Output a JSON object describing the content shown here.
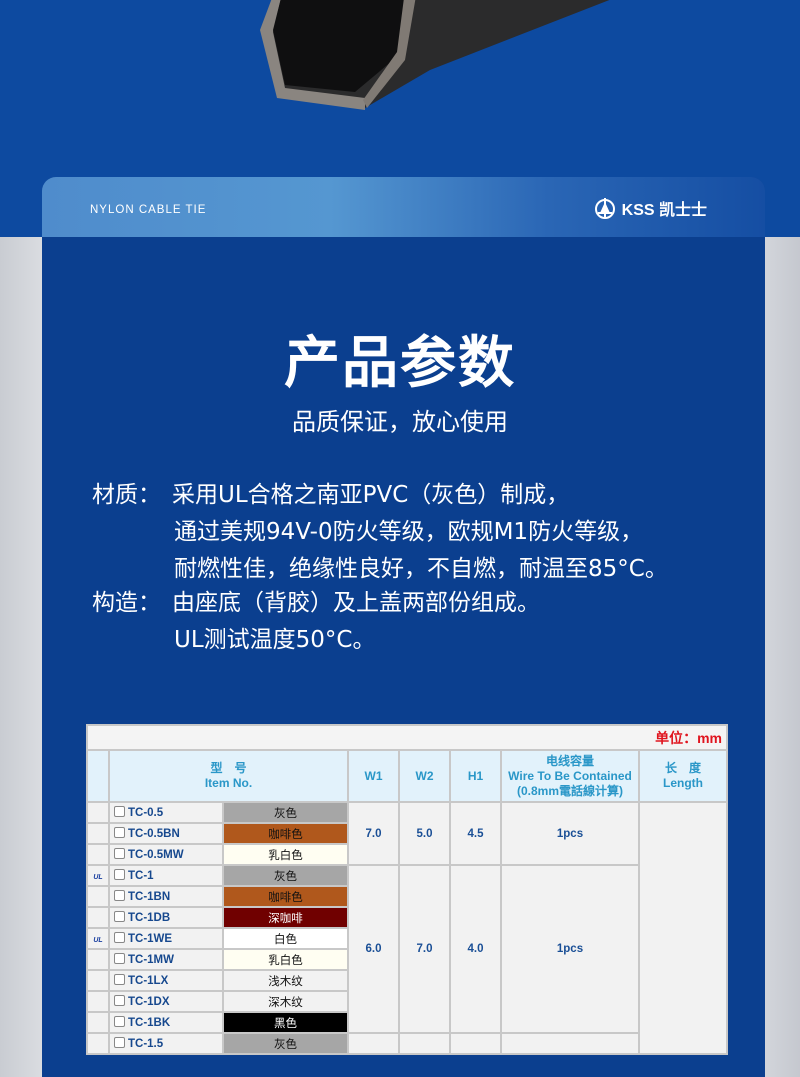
{
  "header": {
    "tagline": "NYLON CABLE TIE",
    "brand": "KSS 凯士士"
  },
  "title": "产品参数",
  "subtitle": "品质保证，放心使用",
  "specs": [
    {
      "label": "材质：",
      "lines": [
        "采用UL合格之南亚PVC（灰色）制成，",
        "通过美规94V-0防火等级，欧规M1防火等级，",
        "耐燃性佳，绝缘性良好，不自燃，耐温至85°C。"
      ]
    },
    {
      "label": "构造：",
      "lines": [
        "由座底（背胶）及上盖两部份组成。",
        "UL测试温度50°C。"
      ]
    }
  ],
  "table": {
    "unit": "单位：mm",
    "headers": {
      "item_cn": "型　号",
      "item_en": "Item No.",
      "w1": "W1",
      "w2": "W2",
      "h1": "H1",
      "wire_cn": "电线容量",
      "wire_en": "Wire To Be Contained",
      "wire_note": "(0.8mm電話線计算)",
      "len_cn": "长　度",
      "len_en": "Length"
    },
    "groups": [
      {
        "w1": "7.0",
        "w2": "5.0",
        "h1": "4.5",
        "wire": "1pcs",
        "rows": [
          {
            "ul": false,
            "item": "TC-0.5",
            "color": "灰色",
            "bg": "#a6a6a6",
            "fg": "#111111"
          },
          {
            "ul": false,
            "item": "TC-0.5BN",
            "color": "咖啡色",
            "bg": "#b0581c",
            "fg": "#111111"
          },
          {
            "ul": false,
            "item": "TC-0.5MW",
            "color": "乳白色",
            "bg": "#fffef2",
            "fg": "#111111"
          }
        ]
      },
      {
        "w1": "6.0",
        "w2": "7.0",
        "h1": "4.0",
        "wire": "1pcs",
        "rows": [
          {
            "ul": true,
            "item": "TC-1",
            "color": "灰色",
            "bg": "#a6a6a6",
            "fg": "#111111"
          },
          {
            "ul": false,
            "item": "TC-1BN",
            "color": "咖啡色",
            "bg": "#b0581c",
            "fg": "#111111"
          },
          {
            "ul": false,
            "item": "TC-1DB",
            "color": "深咖啡",
            "bg": "#700000",
            "fg": "#ffffff"
          },
          {
            "ul": true,
            "item": "TC-1WE",
            "color": "白色",
            "bg": "#ffffff",
            "fg": "#111111"
          },
          {
            "ul": false,
            "item": "TC-1MW",
            "color": "乳白色",
            "bg": "#fffef2",
            "fg": "#111111"
          },
          {
            "ul": false,
            "item": "TC-1LX",
            "color": "浅木纹",
            "bg": "#f2f2f2",
            "fg": "#111111"
          },
          {
            "ul": false,
            "item": "TC-1DX",
            "color": "深木纹",
            "bg": "#f2f2f2",
            "fg": "#111111"
          },
          {
            "ul": false,
            "item": "TC-1BK",
            "color": "黑色",
            "bg": "#000000",
            "fg": "#ffffff"
          }
        ]
      },
      {
        "w1": "",
        "w2": "",
        "h1": "",
        "wire": "",
        "rows": [
          {
            "ul": false,
            "item": "TC-1.5",
            "color": "灰色",
            "bg": "#a6a6a6",
            "fg": "#111111"
          }
        ]
      }
    ],
    "ul_mark": "UL"
  }
}
